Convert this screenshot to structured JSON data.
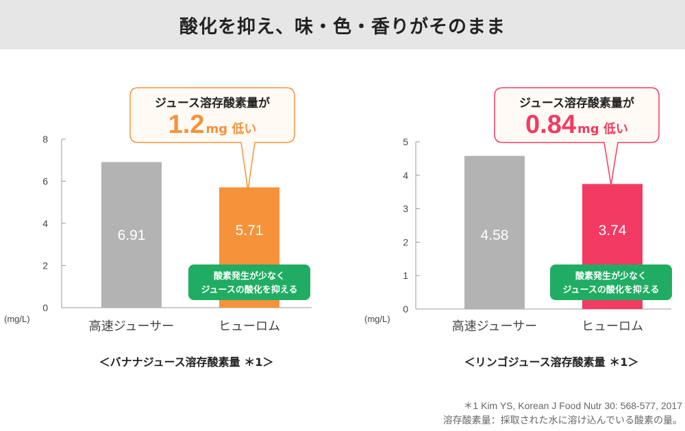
{
  "page": {
    "title": "酸化を抑え、味・色・香りがそのまま",
    "footnotes": [
      "＊1  Kim YS, Korean J Food Nutr 30: 568-577, 2017",
      "溶存酸素量：採取された水に溶け込んでいる酸素の量。"
    ]
  },
  "chart_data": [
    {
      "type": "bar",
      "title": "＜バナナジュース溶存酸素量 ＊1＞",
      "ylabel": "(mg/L)",
      "ylim": [
        0,
        8
      ],
      "yticks": [
        "0",
        "2",
        "4",
        "6",
        "8"
      ],
      "categories": [
        "高速ジューサー",
        "ヒューロム"
      ],
      "values": [
        6.91,
        5.71
      ],
      "value_labels": [
        "6.91",
        "5.71"
      ],
      "colors": [
        "#b3b3b3",
        "#f6923a"
      ],
      "callout": {
        "line1": "ジュース溶存酸素量が",
        "value": "1.2",
        "unit": "mg 低い",
        "color": "#f6923a"
      },
      "badge": {
        "line1": "酸素発生が少なく",
        "line2": "ジュースの酸化を抑える",
        "color": "#20ad63"
      }
    },
    {
      "type": "bar",
      "title": "＜リンゴジュース溶存酸素量 ＊1＞",
      "ylabel": "(mg/L)",
      "ylim": [
        0,
        5
      ],
      "yticks": [
        "0",
        "1",
        "2",
        "3",
        "4",
        "5"
      ],
      "categories": [
        "高速ジューサー",
        "ヒューロム"
      ],
      "values": [
        4.58,
        3.74
      ],
      "value_labels": [
        "4.58",
        "3.74"
      ],
      "colors": [
        "#b3b3b3",
        "#f23a62"
      ],
      "callout": {
        "line1": "ジュース溶存酸素量が",
        "value": "0.84",
        "unit": "mg 低い",
        "color": "#f23a62"
      },
      "badge": {
        "line1": "酸素発生が少なく",
        "line2": "ジュースの酸化を抑える",
        "color": "#20ad63"
      }
    }
  ]
}
